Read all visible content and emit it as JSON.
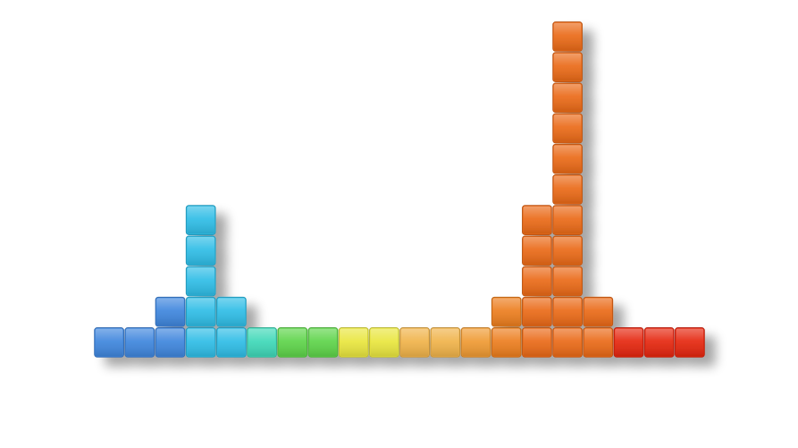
{
  "chart_data": {
    "type": "bar",
    "title": "",
    "xlabel": "",
    "ylabel": "",
    "grid": false,
    "legend": "none",
    "values": [
      1,
      1,
      2,
      5,
      2,
      1,
      1,
      1,
      1,
      1,
      1,
      1,
      1,
      2,
      5,
      11,
      2,
      1,
      1,
      1
    ],
    "ylim": [
      0,
      11
    ],
    "colors": [
      "#3f86dd",
      "#3f86dd",
      "#3f86dd",
      "#2fbde6",
      "#2fbde6",
      "#3fd8b8",
      "#5ed44a",
      "#5ed44a",
      "#e9e63f",
      "#e9e63f",
      "#f0b34a",
      "#f0b34a",
      "#ef9a33",
      "#ec7e1f",
      "#ea6a18",
      "#ea6a18",
      "#ea6a18",
      "#e5270f",
      "#e5270f",
      "#e5270f"
    ]
  }
}
